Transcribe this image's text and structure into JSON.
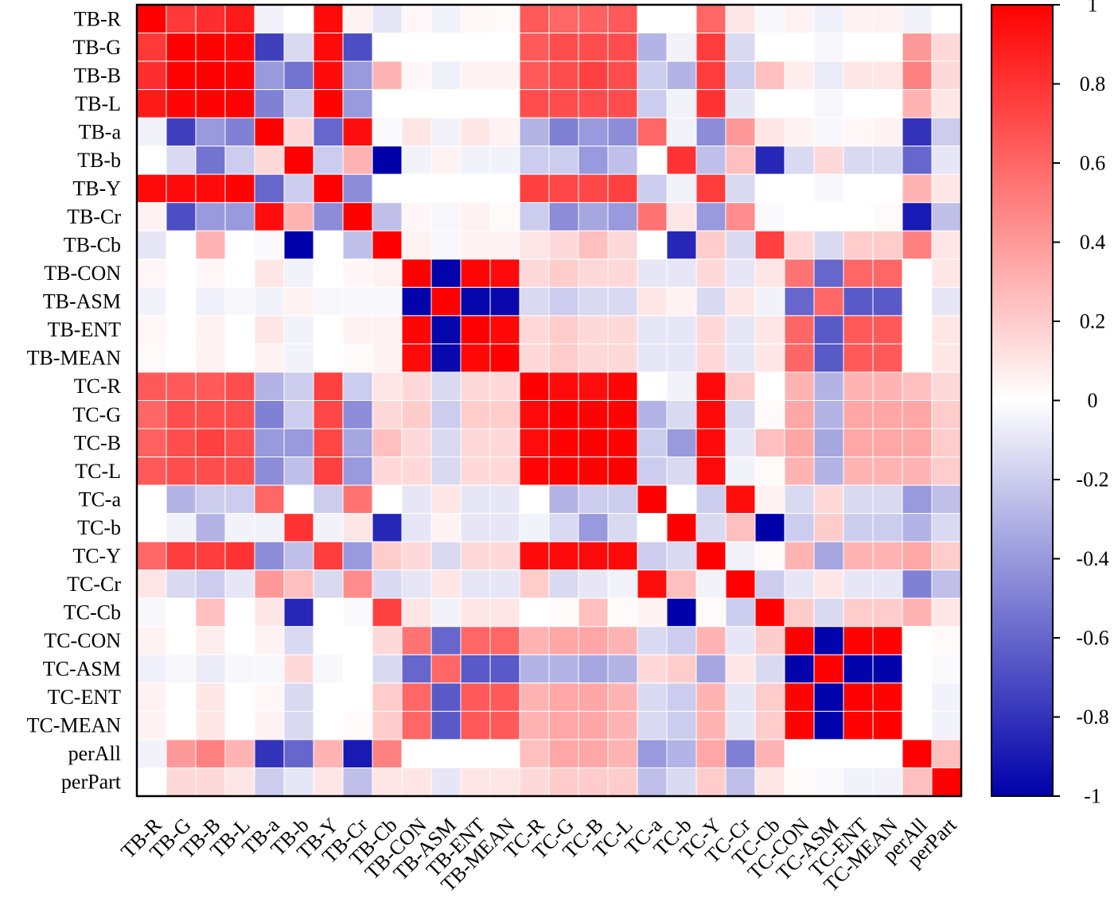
{
  "chart_data": {
    "type": "heatmap",
    "title": "",
    "labels": [
      "TB-R",
      "TB-G",
      "TB-B",
      "TB-L",
      "TB-a",
      "TB-b",
      "TB-Y",
      "TB-Cr",
      "TB-Cb",
      "TB-CON",
      "TB-ASM",
      "TB-ENT",
      "TB-MEAN",
      "TC-R",
      "TC-G",
      "TC-B",
      "TC-L",
      "TC-a",
      "TC-b",
      "TC-Y",
      "TC-Cr",
      "TC-Cb",
      "TC-CON",
      "TC-ASM",
      "TC-ENT",
      "TC-MEAN",
      "perAll",
      "perPart"
    ],
    "values": [
      [
        1.0,
        0.78,
        0.82,
        0.9,
        -0.05,
        0.0,
        0.96,
        0.05,
        -0.1,
        0.03,
        -0.05,
        0.03,
        0.02,
        0.65,
        0.6,
        0.62,
        0.65,
        0.0,
        0.0,
        0.6,
        0.1,
        -0.03,
        0.05,
        -0.06,
        0.05,
        0.05,
        -0.05,
        0.0
      ],
      [
        0.78,
        1.0,
        0.99,
        0.98,
        -0.75,
        -0.15,
        0.96,
        -0.7,
        0.0,
        0.0,
        0.0,
        0.0,
        0.0,
        0.65,
        0.7,
        0.7,
        0.7,
        -0.3,
        -0.05,
        0.76,
        -0.15,
        0.0,
        0.0,
        -0.03,
        0.0,
        0.0,
        0.4,
        0.15
      ],
      [
        0.82,
        0.99,
        1.0,
        0.99,
        -0.4,
        -0.55,
        0.96,
        -0.4,
        0.3,
        0.03,
        -0.06,
        0.05,
        0.05,
        0.65,
        0.7,
        0.75,
        0.7,
        -0.2,
        -0.3,
        0.76,
        -0.2,
        0.25,
        0.07,
        -0.08,
        0.1,
        0.1,
        0.5,
        0.15
      ],
      [
        0.9,
        0.98,
        0.99,
        1.0,
        -0.5,
        -0.2,
        0.99,
        -0.4,
        0.0,
        0.0,
        0.0,
        0.0,
        0.0,
        0.7,
        0.7,
        0.7,
        0.7,
        -0.2,
        -0.05,
        0.8,
        -0.1,
        0.0,
        0.0,
        -0.03,
        0.0,
        0.0,
        0.3,
        0.1
      ],
      [
        -0.05,
        -0.75,
        -0.4,
        -0.5,
        1.0,
        0.15,
        -0.6,
        0.95,
        -0.02,
        0.1,
        -0.05,
        0.1,
        0.05,
        -0.3,
        -0.5,
        -0.4,
        -0.45,
        0.6,
        -0.05,
        -0.45,
        0.4,
        0.1,
        0.05,
        -0.03,
        0.03,
        0.05,
        -0.8,
        -0.2
      ],
      [
        0.0,
        -0.15,
        -0.55,
        -0.2,
        0.15,
        1.0,
        -0.2,
        0.3,
        -1.0,
        -0.05,
        0.05,
        -0.05,
        -0.05,
        -0.2,
        -0.2,
        -0.4,
        -0.25,
        0.0,
        0.8,
        -0.25,
        0.25,
        -0.85,
        -0.15,
        0.15,
        -0.15,
        -0.15,
        -0.6,
        -0.1
      ],
      [
        0.96,
        0.96,
        0.96,
        0.99,
        -0.6,
        -0.2,
        1.0,
        -0.45,
        0.0,
        0.0,
        0.0,
        0.0,
        0.0,
        0.75,
        0.72,
        0.72,
        0.75,
        -0.2,
        -0.05,
        0.76,
        -0.15,
        0.0,
        0.0,
        -0.03,
        0.0,
        0.0,
        0.3,
        0.1
      ],
      [
        0.05,
        -0.7,
        -0.4,
        -0.4,
        0.95,
        0.3,
        -0.45,
        1.0,
        -0.25,
        0.03,
        -0.03,
        0.05,
        0.02,
        -0.2,
        -0.45,
        -0.35,
        -0.4,
        0.55,
        0.1,
        -0.4,
        0.45,
        -0.02,
        0.0,
        0.0,
        0.0,
        0.02,
        -0.9,
        -0.25
      ],
      [
        -0.1,
        0.0,
        0.3,
        0.0,
        -0.02,
        -1.0,
        0.0,
        -0.25,
        1.0,
        0.05,
        -0.03,
        0.05,
        0.05,
        0.1,
        0.15,
        0.25,
        0.15,
        0.0,
        -0.85,
        0.2,
        -0.15,
        0.75,
        0.15,
        -0.15,
        0.2,
        0.2,
        0.5,
        0.1
      ],
      [
        0.03,
        0.0,
        0.03,
        0.0,
        0.1,
        -0.05,
        0.0,
        0.03,
        0.05,
        1.0,
        -0.99,
        0.98,
        0.96,
        0.15,
        0.2,
        0.15,
        0.15,
        -0.1,
        -0.1,
        0.15,
        -0.1,
        0.1,
        0.55,
        -0.6,
        0.6,
        0.6,
        0.0,
        0.1
      ],
      [
        -0.05,
        0.0,
        -0.06,
        -0.03,
        -0.05,
        0.05,
        -0.03,
        -0.03,
        -0.03,
        -0.99,
        1.0,
        -0.98,
        -0.97,
        -0.15,
        -0.2,
        -0.15,
        -0.15,
        0.1,
        0.05,
        -0.15,
        0.1,
        -0.05,
        -0.6,
        0.6,
        -0.65,
        -0.65,
        0.0,
        -0.1
      ],
      [
        0.03,
        0.0,
        0.05,
        0.0,
        0.1,
        -0.05,
        0.0,
        0.05,
        0.05,
        0.98,
        -0.98,
        1.0,
        0.97,
        0.15,
        0.2,
        0.15,
        0.15,
        -0.1,
        -0.1,
        0.15,
        -0.1,
        0.1,
        0.6,
        -0.65,
        0.65,
        0.65,
        0.0,
        0.1
      ],
      [
        0.02,
        0.0,
        0.05,
        0.0,
        0.05,
        -0.05,
        0.0,
        0.02,
        0.05,
        0.96,
        -0.97,
        0.97,
        1.0,
        0.15,
        0.2,
        0.15,
        0.15,
        -0.1,
        -0.1,
        0.15,
        -0.1,
        0.1,
        0.6,
        -0.65,
        0.65,
        0.65,
        0.0,
        0.1
      ],
      [
        0.65,
        0.65,
        0.65,
        0.7,
        -0.3,
        -0.2,
        0.75,
        -0.2,
        0.1,
        0.15,
        -0.15,
        0.15,
        0.15,
        1.0,
        0.96,
        0.95,
        0.98,
        0.0,
        -0.05,
        0.96,
        0.2,
        0.0,
        0.3,
        -0.3,
        0.3,
        0.3,
        0.25,
        0.15
      ],
      [
        0.6,
        0.7,
        0.7,
        0.7,
        -0.5,
        -0.2,
        0.72,
        -0.45,
        0.15,
        0.2,
        -0.2,
        0.2,
        0.2,
        0.96,
        1.0,
        0.99,
        0.99,
        -0.3,
        -0.15,
        0.96,
        -0.15,
        0.02,
        0.35,
        -0.3,
        0.35,
        0.35,
        0.35,
        0.2
      ],
      [
        0.62,
        0.7,
        0.75,
        0.7,
        -0.4,
        -0.4,
        0.72,
        -0.35,
        0.25,
        0.15,
        -0.15,
        0.15,
        0.15,
        0.95,
        0.99,
        1.0,
        0.99,
        -0.2,
        -0.4,
        0.96,
        -0.1,
        0.25,
        0.35,
        -0.35,
        0.35,
        0.35,
        0.35,
        0.2
      ],
      [
        0.65,
        0.7,
        0.7,
        0.7,
        -0.45,
        -0.25,
        0.75,
        -0.4,
        0.15,
        0.15,
        -0.15,
        0.15,
        0.15,
        0.98,
        0.99,
        0.99,
        1.0,
        -0.2,
        -0.15,
        0.96,
        -0.05,
        0.02,
        0.3,
        -0.3,
        0.3,
        0.3,
        0.3,
        0.2
      ],
      [
        0.0,
        -0.3,
        -0.2,
        -0.2,
        0.6,
        0.0,
        -0.2,
        0.55,
        0.0,
        -0.1,
        0.1,
        -0.1,
        -0.1,
        0.0,
        -0.3,
        -0.2,
        -0.2,
        1.0,
        0.0,
        -0.2,
        0.95,
        0.05,
        -0.15,
        0.15,
        -0.15,
        -0.15,
        -0.4,
        -0.25
      ],
      [
        0.0,
        -0.05,
        -0.3,
        -0.05,
        -0.05,
        0.8,
        -0.05,
        0.1,
        -0.85,
        -0.1,
        0.05,
        -0.1,
        -0.1,
        -0.05,
        -0.15,
        -0.4,
        -0.15,
        0.0,
        1.0,
        -0.15,
        0.25,
        -1.0,
        -0.2,
        0.2,
        -0.2,
        -0.2,
        -0.3,
        -0.15
      ],
      [
        0.6,
        0.76,
        0.76,
        0.8,
        -0.45,
        -0.25,
        0.76,
        -0.4,
        0.2,
        0.15,
        -0.15,
        0.15,
        0.15,
        0.96,
        0.96,
        0.96,
        0.96,
        -0.2,
        -0.15,
        1.0,
        -0.05,
        0.02,
        0.3,
        -0.35,
        0.3,
        0.3,
        0.35,
        0.2
      ],
      [
        0.1,
        -0.15,
        -0.2,
        -0.1,
        0.4,
        0.25,
        -0.15,
        0.45,
        -0.15,
        -0.1,
        0.1,
        -0.1,
        -0.1,
        0.2,
        -0.15,
        -0.1,
        -0.05,
        0.95,
        0.25,
        -0.05,
        1.0,
        -0.2,
        -0.1,
        0.1,
        -0.1,
        -0.1,
        -0.5,
        -0.25
      ],
      [
        -0.03,
        0.0,
        0.25,
        0.0,
        0.1,
        -0.85,
        0.0,
        -0.02,
        0.75,
        0.1,
        -0.05,
        0.1,
        0.1,
        0.0,
        0.02,
        0.25,
        0.02,
        0.05,
        -1.0,
        0.02,
        -0.2,
        1.0,
        0.2,
        -0.15,
        0.2,
        0.2,
        0.3,
        0.1
      ],
      [
        0.05,
        0.0,
        0.07,
        0.0,
        0.05,
        -0.15,
        0.0,
        0.0,
        0.15,
        0.55,
        -0.6,
        0.6,
        0.6,
        0.3,
        0.35,
        0.35,
        0.3,
        -0.15,
        -0.2,
        0.3,
        -0.1,
        0.2,
        1.0,
        -0.99,
        0.99,
        0.99,
        0.0,
        0.02
      ],
      [
        -0.06,
        -0.03,
        -0.08,
        -0.03,
        -0.03,
        0.15,
        -0.03,
        0.0,
        -0.15,
        -0.6,
        0.6,
        -0.65,
        -0.65,
        -0.3,
        -0.3,
        -0.35,
        -0.3,
        0.15,
        0.2,
        -0.35,
        0.1,
        -0.15,
        -0.99,
        1.0,
        -0.99,
        -0.99,
        0.0,
        -0.02
      ],
      [
        0.05,
        0.0,
        0.1,
        0.0,
        0.03,
        -0.15,
        0.0,
        0.0,
        0.2,
        0.6,
        -0.65,
        0.65,
        0.65,
        0.3,
        0.35,
        0.35,
        0.3,
        -0.15,
        -0.2,
        0.3,
        -0.1,
        0.2,
        0.99,
        -0.99,
        1.0,
        0.99,
        0.0,
        -0.05
      ],
      [
        0.05,
        0.0,
        0.1,
        0.0,
        0.05,
        -0.15,
        0.0,
        0.02,
        0.2,
        0.6,
        -0.65,
        0.65,
        0.65,
        0.3,
        0.35,
        0.35,
        0.3,
        -0.15,
        -0.2,
        0.3,
        -0.1,
        0.2,
        0.99,
        -0.99,
        0.99,
        1.0,
        0.0,
        -0.05
      ],
      [
        -0.05,
        0.4,
        0.5,
        0.3,
        -0.8,
        -0.6,
        0.3,
        -0.9,
        0.5,
        0.0,
        0.0,
        0.0,
        0.0,
        0.25,
        0.35,
        0.35,
        0.3,
        -0.4,
        -0.3,
        0.35,
        -0.5,
        0.3,
        0.0,
        0.0,
        0.0,
        0.0,
        1.0,
        0.25
      ],
      [
        0.0,
        0.15,
        0.15,
        0.1,
        -0.2,
        -0.1,
        0.1,
        -0.25,
        0.1,
        0.1,
        -0.1,
        0.1,
        0.1,
        0.15,
        0.2,
        0.2,
        0.2,
        -0.25,
        -0.15,
        0.2,
        -0.25,
        0.1,
        0.02,
        -0.02,
        -0.05,
        -0.05,
        0.25,
        1.0
      ]
    ],
    "colorbar": {
      "min": -1,
      "max": 1,
      "ticks": [
        {
          "value": 1,
          "label": "1"
        },
        {
          "value": 0.8,
          "label": "0.8"
        },
        {
          "value": 0.6,
          "label": "0.6"
        },
        {
          "value": 0.4,
          "label": "0.4"
        },
        {
          "value": 0.2,
          "label": "0.2"
        },
        {
          "value": 0,
          "label": "0"
        },
        {
          "value": -0.2,
          "label": "-0.2"
        },
        {
          "value": -0.4,
          "label": "-0.4"
        },
        {
          "value": -0.6,
          "label": "-0.6"
        },
        {
          "value": -0.8,
          "label": "-0.8"
        },
        {
          "value": -1,
          "label": "-1"
        }
      ],
      "color_low": "#0000aa",
      "color_mid": "#ffffff",
      "color_high": "#ff0000"
    },
    "grid": true,
    "legend_position": "right"
  }
}
